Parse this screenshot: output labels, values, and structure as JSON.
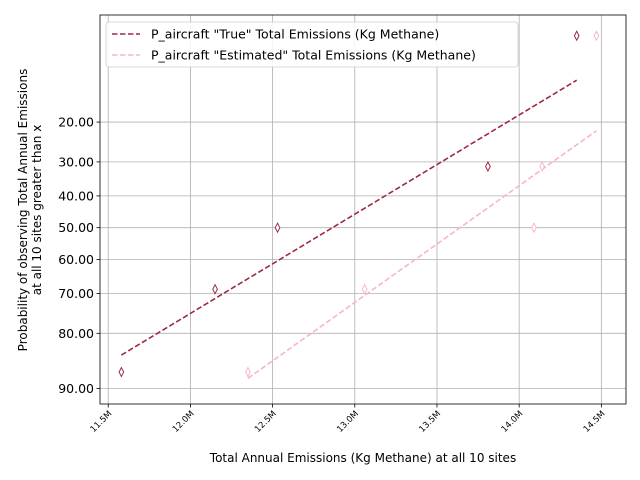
{
  "chart_data": {
    "type": "line",
    "xlabel": "Total Annual Emissions (Kg Methane) at all 10 sites",
    "ylabel_lines": [
      "Probability of observing Total Annual Emissions",
      "at all 10 sites greater than x"
    ],
    "x_ticks": [
      11500000,
      12000000,
      12500000,
      13000000,
      13500000,
      14000000,
      14500000
    ],
    "x_tick_labels": [
      "11.5M",
      "12.0M",
      "12.5M",
      "13.0M",
      "13.5M",
      "14.0M",
      "14.5M"
    ],
    "y_ticks": [
      20,
      30,
      40,
      50,
      60,
      70,
      80,
      90
    ],
    "y_tick_labels": [
      "20.00",
      "30.00",
      "40.00",
      "50.00",
      "60.00",
      "70.00",
      "80.00",
      "90.00"
    ],
    "y_scale": "normal-probability",
    "y_inverted": true,
    "xlim": [
      11450000,
      14650000
    ],
    "ylim": [
      4.5,
      92.0
    ],
    "grid": true,
    "legend_position": "top-left",
    "series": [
      {
        "name": "P_aircraft \"True\" Total Emissions (Kg Methane)",
        "color": "#9e2a42",
        "markers": [
          {
            "x": 11580000,
            "y": 87.5
          },
          {
            "x": 12150000,
            "y": 68.8
          },
          {
            "x": 12530000,
            "y": 50.0
          },
          {
            "x": 13810000,
            "y": 31.3
          },
          {
            "x": 14350000,
            "y": 6.3
          }
        ],
        "fit": [
          {
            "x": 11580000,
            "y": 84.5
          },
          {
            "x": 14350000,
            "y": 12.0
          }
        ]
      },
      {
        "name": "P_aircraft \"Estimated\" Total Emissions (Kg Methane)",
        "color": "#f7b6c8",
        "markers": [
          {
            "x": 12350000,
            "y": 87.5
          },
          {
            "x": 13060000,
            "y": 68.8
          },
          {
            "x": 14090000,
            "y": 50.0
          },
          {
            "x": 14140000,
            "y": 31.3
          },
          {
            "x": 14470000,
            "y": 6.3
          }
        ],
        "fit": [
          {
            "x": 12350000,
            "y": 88.5
          },
          {
            "x": 14470000,
            "y": 22.0
          }
        ]
      }
    ]
  }
}
